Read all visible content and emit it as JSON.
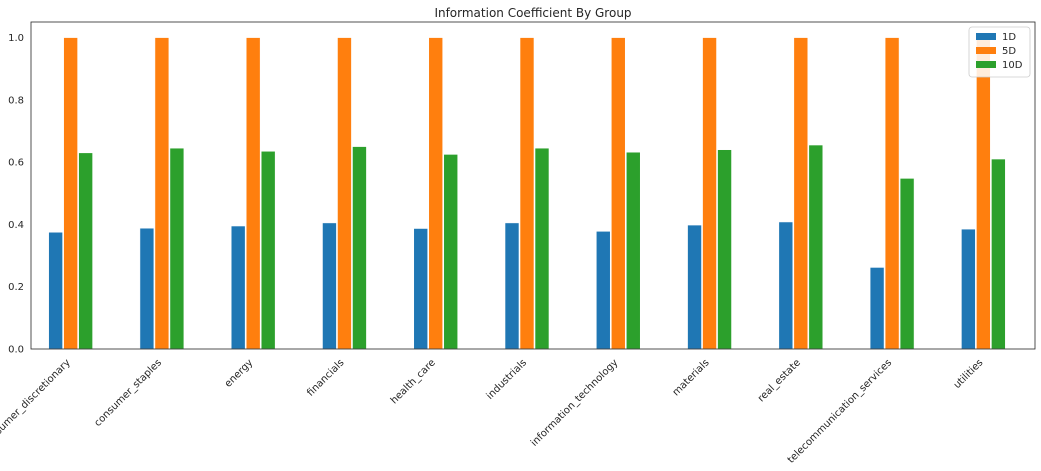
{
  "chart_data": {
    "type": "bar",
    "title": "Information Coefficient By Group",
    "xlabel": "",
    "ylabel": "",
    "ylim": [
      0,
      1.05
    ],
    "yticks": [
      0.0,
      0.2,
      0.4,
      0.6,
      0.8,
      1.0
    ],
    "ytick_labels": [
      "0.0",
      "0.2",
      "0.4",
      "0.6",
      "0.8",
      "1.0"
    ],
    "grid": false,
    "legend_position": "top-right",
    "categories": [
      "consumer_discretionary",
      "consumer_staples",
      "energy",
      "financials",
      "health_care",
      "industrials",
      "information_technology",
      "materials",
      "real_estate",
      "telecommunication_services",
      "utilities"
    ],
    "series": [
      {
        "name": "1D",
        "color": "#1f77b4",
        "values": [
          0.375,
          0.388,
          0.395,
          0.405,
          0.387,
          0.405,
          0.378,
          0.398,
          0.408,
          0.262,
          0.385
        ]
      },
      {
        "name": "5D",
        "color": "#ff7f0e",
        "values": [
          1.0,
          1.0,
          1.0,
          1.0,
          1.0,
          1.0,
          1.0,
          1.0,
          1.0,
          1.0,
          1.0
        ]
      },
      {
        "name": "10D",
        "color": "#2ca02c",
        "values": [
          0.63,
          0.645,
          0.635,
          0.65,
          0.625,
          0.645,
          0.632,
          0.64,
          0.655,
          0.548,
          0.61
        ]
      }
    ]
  }
}
